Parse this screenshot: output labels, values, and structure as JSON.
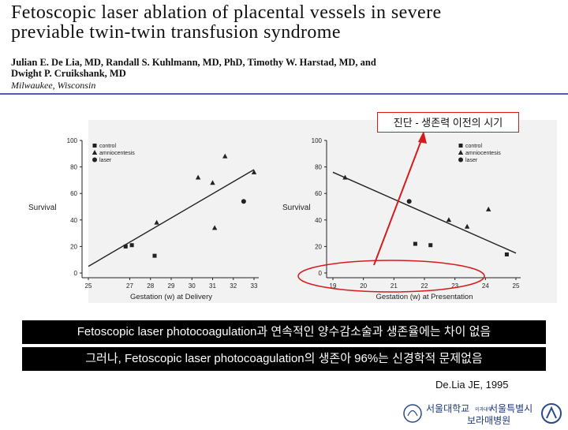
{
  "paper": {
    "title_line1": "Fetoscopic laser ablation of placental vessels in severe",
    "title_line2": "previable twin-twin transfusion syndrome",
    "authors_line1": "Julian E. De Lia, MD, Randall S. Kuhlmann, MD, PhD, Timothy W. Harstad, MD, and",
    "authors_line2": "Dwight P. Cruikshank, MD",
    "affiliation": "Milwaukee, Wisconsin"
  },
  "callout": "진단 - 생존력 이전의 시기",
  "findings": {
    "line1": "Fetoscopic laser photocoagulation과 연속적인 양수감소술과 생존율에는 차이 없음",
    "line2": "그러나, Fetoscopic laser photocoagulation의 생존아 96%는 신경학적 문제없음"
  },
  "citation": "De.Lia JE, 1995",
  "logo": {
    "left_text": "서울대학교",
    "small_text": "의과대학",
    "right_text": "서울특별시",
    "bottom_text": "보라매병원",
    "colors": {
      "text": "#1f3a7a",
      "emblem": "#2a4a8a"
    }
  },
  "colors": {
    "callout_border": "#d41c1c",
    "arrow": "#d41c1c",
    "banner_bg": "#000000",
    "banner_text": "#ffffff",
    "divider": "#4a5fb0"
  },
  "chart_data": [
    {
      "type": "scatter",
      "title": "",
      "xlabel": "Gestation (w) at Delivery",
      "ylabel": "Survival",
      "xticks": [
        25,
        27,
        28,
        29,
        30,
        31,
        32,
        33
      ],
      "yticks": [
        0,
        20,
        40,
        60,
        80,
        100
      ],
      "xlim": [
        25,
        33
      ],
      "ylim": [
        0,
        100
      ],
      "legend": [
        "control",
        "amniocentesis",
        "laser"
      ],
      "legend_position": "top-left",
      "series": [
        {
          "name": "control",
          "marker": "square",
          "x": [
            26.8,
            27.1,
            28.2
          ],
          "y": [
            20,
            21,
            13
          ]
        },
        {
          "name": "amniocentesis",
          "marker": "triangle",
          "x": [
            28.3,
            30.3,
            31.0,
            31.1,
            31.6,
            33.0
          ],
          "y": [
            38,
            72,
            68,
            34,
            88,
            76
          ]
        },
        {
          "name": "laser",
          "marker": "circle",
          "x": [
            32.5
          ],
          "y": [
            54
          ]
        }
      ],
      "trendline": {
        "x": [
          25,
          33
        ],
        "y": [
          5,
          78
        ]
      }
    },
    {
      "type": "scatter",
      "title": "",
      "xlabel": "Gestation (w) at Presentation",
      "ylabel": "Survival",
      "xticks": [
        19,
        20,
        21,
        22,
        23,
        24,
        25
      ],
      "yticks": [
        0,
        20,
        40,
        60,
        80,
        100
      ],
      "xlim": [
        19,
        25
      ],
      "ylim": [
        0,
        100
      ],
      "legend": [
        "control",
        "amniocentesis",
        "laser"
      ],
      "legend_position": "top-right",
      "series": [
        {
          "name": "control",
          "marker": "square",
          "x": [
            21.7,
            22.2,
            24.7
          ],
          "y": [
            22,
            21,
            14
          ]
        },
        {
          "name": "amniocentesis",
          "marker": "triangle",
          "x": [
            19.4,
            22.8,
            23.4,
            24.1
          ],
          "y": [
            72,
            40,
            35,
            48
          ]
        },
        {
          "name": "laser",
          "marker": "circle",
          "x": [
            21.5
          ],
          "y": [
            54
          ]
        }
      ],
      "trendline": {
        "x": [
          19,
          25
        ],
        "y": [
          76,
          15
        ]
      }
    }
  ]
}
